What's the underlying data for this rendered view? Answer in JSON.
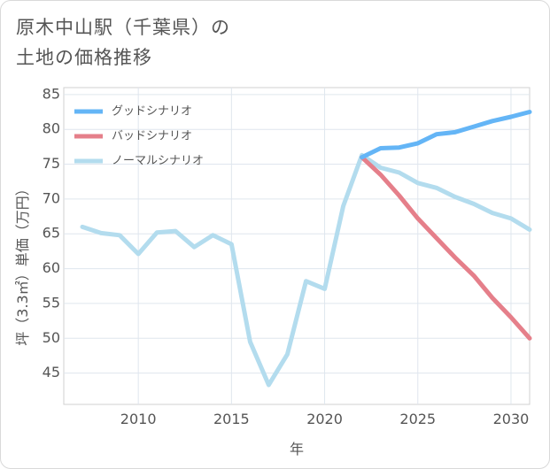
{
  "title": {
    "line1": "原木中山駅（千葉県）の",
    "line2": "土地の価格推移"
  },
  "chart_data": {
    "type": "line",
    "xlabel": "年",
    "ylabel": "坪（3.3㎡）単価（万円）",
    "xlim": [
      2006,
      2031
    ],
    "ylim": [
      40.5,
      86
    ],
    "xticks": [
      2010,
      2015,
      2020,
      2025,
      2030
    ],
    "yticks": [
      45,
      50,
      55,
      60,
      65,
      70,
      75,
      80,
      85
    ],
    "grid": true,
    "legend_position": "top-left",
    "series": [
      {
        "name": "グッドシナリオ",
        "color": "#64b5f6",
        "x": [
          2022,
          2023,
          2024,
          2025,
          2026,
          2027,
          2028,
          2029,
          2030,
          2031
        ],
        "values": [
          76.0,
          77.3,
          77.4,
          78.0,
          79.3,
          79.6,
          80.4,
          81.2,
          81.8,
          82.5
        ]
      },
      {
        "name": "バッドシナリオ",
        "color": "#e57f8a",
        "x": [
          2022,
          2023,
          2024,
          2025,
          2026,
          2027,
          2028,
          2029,
          2030,
          2031
        ],
        "values": [
          76.0,
          73.5,
          70.5,
          67.2,
          64.4,
          61.6,
          59.0,
          55.8,
          53.0,
          50.0
        ]
      },
      {
        "name": "ノーマルシナリオ",
        "color": "#b3dcee",
        "x": [
          2007,
          2008,
          2009,
          2010,
          2011,
          2012,
          2013,
          2014,
          2015,
          2016,
          2017,
          2018,
          2019,
          2020,
          2021,
          2022,
          2023,
          2024,
          2025,
          2026,
          2027,
          2028,
          2029,
          2030,
          2031
        ],
        "values": [
          66.0,
          65.1,
          64.8,
          62.1,
          65.2,
          65.4,
          63.1,
          64.8,
          63.5,
          49.5,
          43.3,
          47.7,
          58.2,
          57.1,
          69.0,
          76.3,
          74.5,
          73.8,
          72.3,
          71.6,
          70.3,
          69.3,
          68.0,
          67.2,
          65.6
        ]
      }
    ]
  }
}
